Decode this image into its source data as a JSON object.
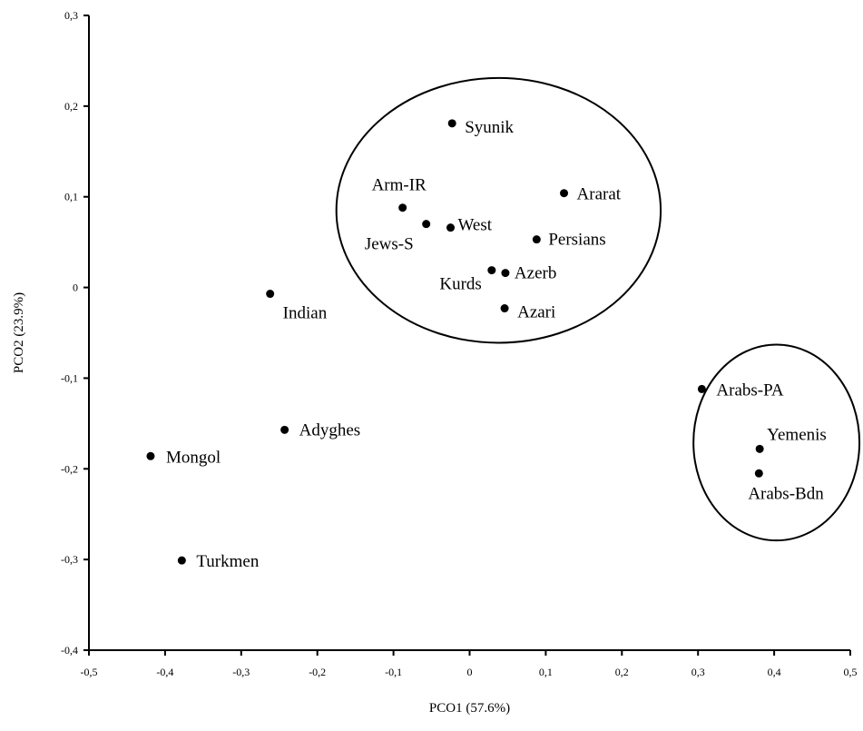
{
  "chart_data": {
    "type": "scatter",
    "title": "",
    "xlabel": "PCO1 (57.6%)",
    "ylabel": "PCO2 (23.9%)",
    "xlim": [
      -0.5,
      0.5
    ],
    "ylim": [
      -0.4,
      0.3
    ],
    "x_ticks": [
      {
        "value": -0.5,
        "label": "-0,5"
      },
      {
        "value": -0.4,
        "label": "-0,4"
      },
      {
        "value": -0.3,
        "label": "-0,3"
      },
      {
        "value": -0.2,
        "label": "-0,2"
      },
      {
        "value": -0.1,
        "label": "-0,1"
      },
      {
        "value": 0,
        "label": "0"
      },
      {
        "value": 0.1,
        "label": "0,1"
      },
      {
        "value": 0.2,
        "label": "0,2"
      },
      {
        "value": 0.3,
        "label": "0,3"
      },
      {
        "value": 0.4,
        "label": "0,4"
      },
      {
        "value": 0.5,
        "label": "0,5"
      }
    ],
    "y_ticks": [
      {
        "value": 0.3,
        "label": "0,3"
      },
      {
        "value": 0.2,
        "label": "0,2"
      },
      {
        "value": 0.1,
        "label": "0,1"
      },
      {
        "value": 0,
        "label": "0"
      },
      {
        "value": -0.1,
        "label": "-0,1"
      },
      {
        "value": -0.2,
        "label": "-0,2"
      },
      {
        "value": -0.3,
        "label": "-0,3"
      },
      {
        "value": -0.4,
        "label": "-0,4"
      }
    ],
    "grid": false,
    "legend": "none",
    "points": [
      {
        "name": "Syunik",
        "x": -0.023,
        "y": 0.181
      },
      {
        "name": "Ararat",
        "x": 0.124,
        "y": 0.104
      },
      {
        "name": "Arm-IR",
        "x": -0.088,
        "y": 0.088
      },
      {
        "name": "Jews-S",
        "x": -0.057,
        "y": 0.07
      },
      {
        "name": "West",
        "x": -0.025,
        "y": 0.066
      },
      {
        "name": "Persians",
        "x": 0.088,
        "y": 0.053
      },
      {
        "name": "Kurds",
        "x": 0.029,
        "y": 0.019
      },
      {
        "name": "Azerb",
        "x": 0.047,
        "y": 0.016
      },
      {
        "name": "Azari",
        "x": 0.046,
        "y": -0.023
      },
      {
        "name": "Indian",
        "x": -0.262,
        "y": -0.007
      },
      {
        "name": "Arabs-PA",
        "x": 0.305,
        "y": -0.112
      },
      {
        "name": "Yemenis",
        "x": 0.381,
        "y": -0.178
      },
      {
        "name": "Arabs-Bdn",
        "x": 0.38,
        "y": -0.205
      },
      {
        "name": "Adyghes",
        "x": -0.243,
        "y": -0.157
      },
      {
        "name": "Mongol",
        "x": -0.419,
        "y": -0.186
      },
      {
        "name": "Turkmen",
        "x": -0.378,
        "y": -0.301
      }
    ],
    "clusters": [
      {
        "cx": 0.038,
        "cy": 0.085,
        "rx": 0.213,
        "ry": 0.146
      },
      {
        "cx": 0.403,
        "cy": -0.171,
        "rx": 0.109,
        "ry": 0.108
      }
    ]
  }
}
